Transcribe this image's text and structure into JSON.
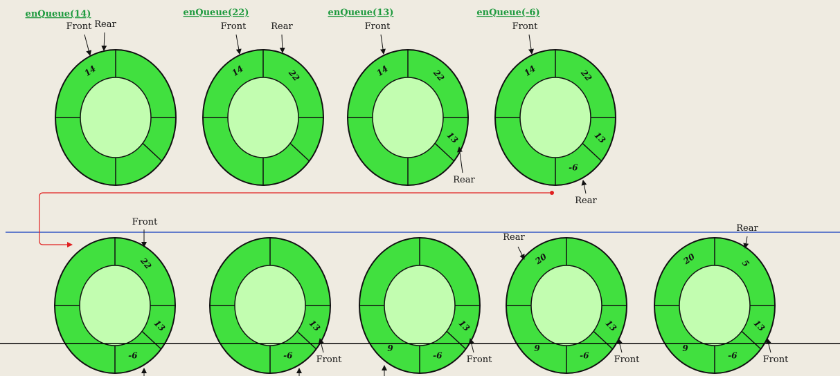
{
  "rings": [
    {
      "title": "enQueue(14)",
      "cells": {
        "ul": "14"
      },
      "front": "Front",
      "rear": "Rear"
    },
    {
      "title": "enQueue(22)",
      "cells": {
        "ul": "14",
        "ur": "22"
      },
      "front": "Front",
      "rear": "Rear"
    },
    {
      "title": "enQueue(13)",
      "cells": {
        "ul": "14",
        "ur": "22",
        "rl": "13"
      },
      "front": "Front",
      "rear": "Rear"
    },
    {
      "title": "enQueue(-6)",
      "cells": {
        "ul": "14",
        "ur": "22",
        "rl": "13",
        "lo": "-6"
      },
      "front": "Front",
      "rear": "Rear"
    },
    {
      "cells": {
        "ur": "22",
        "rl": "13",
        "lo": "-6"
      },
      "front": "Front"
    },
    {
      "cells": {
        "rl": "13",
        "lo": "-6"
      },
      "front": "Front"
    },
    {
      "cells": {
        "rl": "13",
        "lo": "-6",
        "ll": "9"
      },
      "front": "Front"
    },
    {
      "cells": {
        "ul": "20",
        "rl": "13",
        "lo": "-6",
        "ll": "9"
      },
      "front": "Front",
      "rear": "Rear"
    },
    {
      "cells": {
        "ul": "20",
        "ur": "5",
        "rl": "13",
        "lo": "-6",
        "ll": "9"
      },
      "front": "Front",
      "rear": "Rear"
    }
  ]
}
